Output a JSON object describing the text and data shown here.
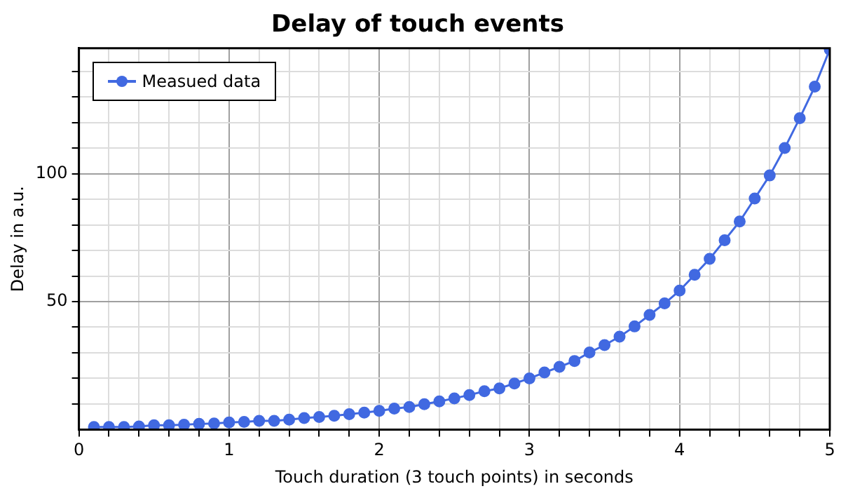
{
  "chart_data": {
    "type": "line",
    "title": "Delay of touch events",
    "xlabel": "Touch duration (3 touch points) in seconds",
    "ylabel": "Delay in a.u.",
    "x": [
      0.1,
      0.2,
      0.3,
      0.4,
      0.5,
      0.6,
      0.7,
      0.8,
      0.9,
      1.0,
      1.1,
      1.2,
      1.3,
      1.4,
      1.5,
      1.6,
      1.7,
      1.8,
      1.9,
      2.0,
      2.1,
      2.2,
      2.3,
      2.4,
      2.5,
      2.6,
      2.7,
      2.8,
      2.9,
      3.0,
      3.1,
      3.2,
      3.3,
      3.4,
      3.5,
      3.6,
      3.7,
      3.8,
      3.9,
      4.0,
      4.1,
      4.2,
      4.3,
      4.4,
      4.5,
      4.6,
      4.7,
      4.8,
      4.9,
      5.0
    ],
    "series": [
      {
        "name": "Measued data",
        "color": "#4169e1",
        "values": [
          1.0,
          1.0,
          1.0,
          1.2,
          1.7,
          1.7,
          1.9,
          2.2,
          2.4,
          2.8,
          3.0,
          3.4,
          3.4,
          3.9,
          4.5,
          4.9,
          5.4,
          6.0,
          6.6,
          7.3,
          8.2,
          8.8,
          9.9,
          11.0,
          12.2,
          13.5,
          15.0,
          16.1,
          18.0,
          20.0,
          22.3,
          24.5,
          26.8,
          30.1,
          33.0,
          36.3,
          40.3,
          44.8,
          49.3,
          54.3,
          60.5,
          66.7,
          74.0,
          81.3,
          90.3,
          99.3,
          110.0,
          121.7,
          134.0,
          148.5
        ]
      }
    ],
    "xlim": [
      0,
      5
    ],
    "xticks": [
      0,
      {
        "value": 0.2,
        "label": null
      },
      {
        "value": 0.4,
        "label": null
      },
      {
        "value": 0.6,
        "label": null
      },
      {
        "value": 0.8,
        "label": null
      },
      1,
      {
        "value": 1.2,
        "label": null
      },
      {
        "value": 1.4,
        "label": null
      },
      {
        "value": 1.6,
        "label": null
      },
      {
        "value": 1.8,
        "label": null
      },
      2,
      {
        "value": 2.2,
        "label": null
      },
      {
        "value": 2.4,
        "label": null
      },
      {
        "value": 2.6,
        "label": null
      },
      {
        "value": 2.8,
        "label": null
      },
      3,
      {
        "value": 3.2,
        "label": null
      },
      {
        "value": 3.4,
        "label": null
      },
      {
        "value": 3.6,
        "label": null
      },
      {
        "value": 3.8,
        "label": null
      },
      4,
      {
        "value": 4.2,
        "label": null
      },
      {
        "value": 4.4,
        "label": null
      },
      {
        "value": 4.6,
        "label": null
      },
      {
        "value": 4.8,
        "label": null
      },
      5
    ],
    "ylim": [
      0,
      149
    ],
    "yticks": [
      {
        "value": 10,
        "label": null
      },
      {
        "value": 20,
        "label": null
      },
      {
        "value": 30,
        "label": null
      },
      {
        "value": 40,
        "label": null
      },
      50,
      {
        "value": 60,
        "label": null
      },
      {
        "value": 70,
        "label": null
      },
      {
        "value": 80,
        "label": null
      },
      {
        "value": 90,
        "label": null
      },
      100,
      {
        "value": 110,
        "label": null
      },
      {
        "value": 120,
        "label": null
      },
      {
        "value": 130,
        "label": null
      },
      {
        "value": 140,
        "label": null
      }
    ],
    "grid": true,
    "legend": "top left",
    "marker": "circle",
    "line_style": "solid"
  }
}
